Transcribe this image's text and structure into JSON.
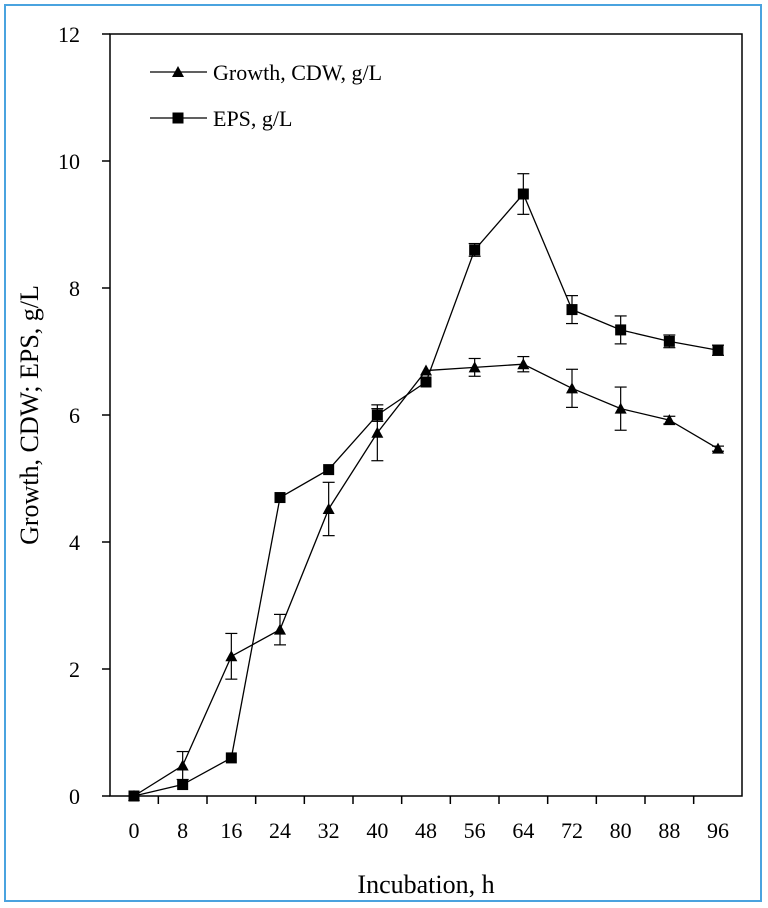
{
  "chart_data": {
    "type": "line",
    "xlabel": "Incubation, h",
    "ylabel": "Growth, CDW; EPS, g/L",
    "xlim": [
      0,
      96
    ],
    "ylim": [
      0,
      12
    ],
    "x_ticks": [
      0,
      8,
      16,
      24,
      32,
      40,
      48,
      56,
      64,
      72,
      80,
      88,
      96
    ],
    "y_ticks": [
      0,
      2,
      4,
      6,
      8,
      10,
      12
    ],
    "grid": false,
    "legend_position": "top-left",
    "series": [
      {
        "name": "Growth, CDW, g/L",
        "marker": "triangle",
        "x": [
          0,
          8,
          16,
          24,
          32,
          40,
          48,
          56,
          64,
          72,
          80,
          88,
          96
        ],
        "y": [
          0,
          0.48,
          2.2,
          2.62,
          4.52,
          5.72,
          6.7,
          6.75,
          6.8,
          6.42,
          6.1,
          5.92,
          5.47
        ],
        "err": [
          0,
          0.22,
          0.36,
          0.24,
          0.42,
          0.44,
          0,
          0.14,
          0.12,
          0.3,
          0.34,
          0.06,
          0.04
        ]
      },
      {
        "name": "EPS, g/L",
        "marker": "square",
        "x": [
          0,
          8,
          16,
          24,
          32,
          40,
          48,
          56,
          64,
          72,
          80,
          88,
          96
        ],
        "y": [
          0,
          0.18,
          0.6,
          4.7,
          5.14,
          6.0,
          6.52,
          8.6,
          9.48,
          7.66,
          7.34,
          7.16,
          7.02
        ],
        "err": [
          0,
          0,
          0,
          0,
          0,
          0.1,
          0,
          0.1,
          0.32,
          0.22,
          0.22,
          0.1,
          0.08
        ]
      }
    ]
  }
}
